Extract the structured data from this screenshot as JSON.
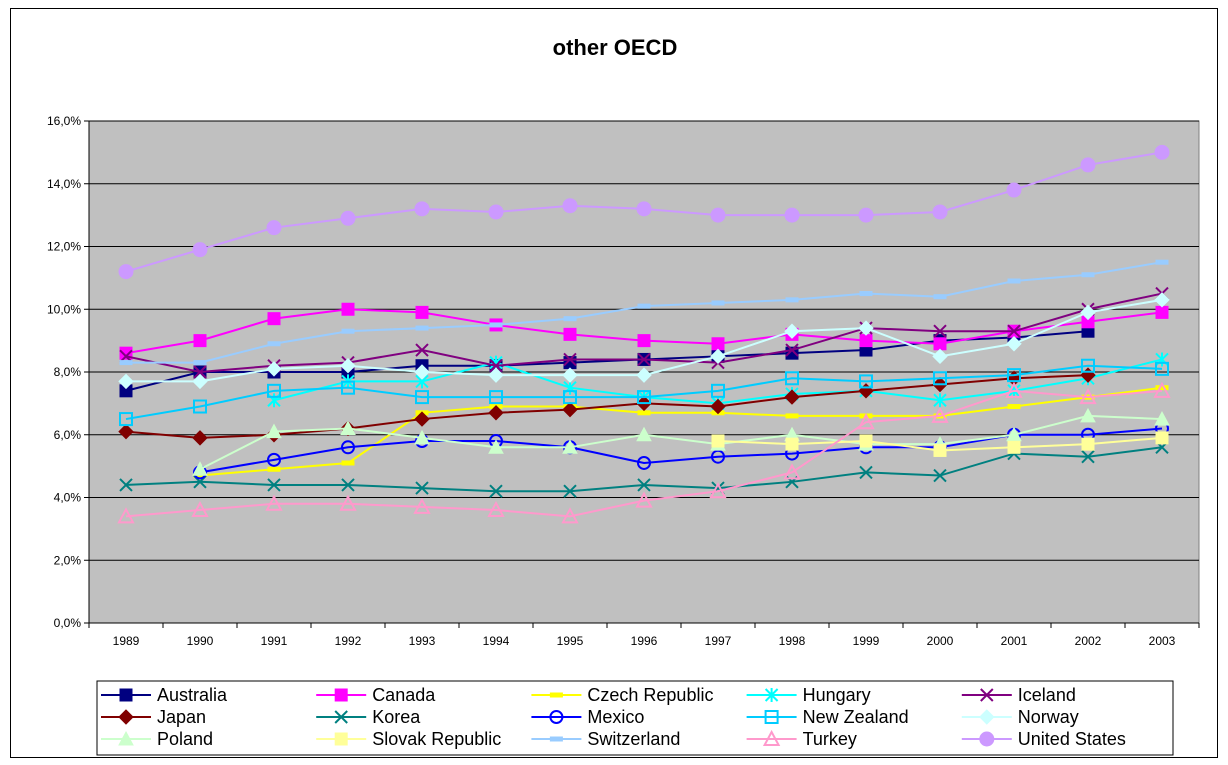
{
  "chart_data": {
    "type": "line",
    "title": "other OECD",
    "xlabel": "",
    "ylabel": "",
    "ylim": [
      0,
      16
    ],
    "y_tick_step": 2,
    "y_tick_labels": [
      "0,0%",
      "2,0%",
      "4,0%",
      "6,0%",
      "8,0%",
      "10,0%",
      "12,0%",
      "14,0%",
      "16,0%"
    ],
    "categories": [
      "1989",
      "1990",
      "1991",
      "1992",
      "1993",
      "1994",
      "1995",
      "1996",
      "1997",
      "1998",
      "1999",
      "2000",
      "2001",
      "2002",
      "2003"
    ],
    "plot_background": "#c0c0c0",
    "grid": true,
    "legend_position": "bottom",
    "series": [
      {
        "name": "Australia",
        "color": "#000080",
        "marker": "square",
        "values": [
          7.4,
          8.0,
          8.0,
          8.0,
          8.2,
          8.2,
          8.3,
          8.4,
          8.5,
          8.6,
          8.7,
          9.0,
          9.1,
          9.3,
          null
        ]
      },
      {
        "name": "Canada",
        "color": "#ff00ff",
        "marker": "square",
        "values": [
          8.6,
          9.0,
          9.7,
          10.0,
          9.9,
          9.5,
          9.2,
          9.0,
          8.9,
          9.2,
          9.0,
          8.9,
          9.3,
          9.6,
          9.9
        ]
      },
      {
        "name": "Czech Republic",
        "color": "#ffff00",
        "marker": "dash",
        "values": [
          null,
          4.7,
          4.9,
          5.1,
          6.7,
          6.9,
          6.9,
          6.7,
          6.7,
          6.6,
          6.6,
          6.6,
          6.9,
          7.2,
          7.5
        ]
      },
      {
        "name": "Hungary",
        "color": "#00ffff",
        "marker": "asterisk",
        "values": [
          null,
          null,
          7.1,
          7.7,
          7.7,
          8.3,
          7.5,
          7.2,
          7.0,
          7.3,
          7.4,
          7.1,
          7.4,
          7.8,
          8.4
        ]
      },
      {
        "name": "Iceland",
        "color": "#800080",
        "marker": "x",
        "values": [
          8.5,
          8.0,
          8.2,
          8.3,
          8.7,
          8.2,
          8.4,
          8.4,
          8.3,
          8.7,
          9.4,
          9.3,
          9.3,
          10.0,
          10.5
        ]
      },
      {
        "name": "Japan",
        "color": "#800000",
        "marker": "diamond",
        "values": [
          6.1,
          5.9,
          6.0,
          6.2,
          6.5,
          6.7,
          6.8,
          7.0,
          6.9,
          7.2,
          7.4,
          7.6,
          7.8,
          7.9,
          null
        ]
      },
      {
        "name": "Korea",
        "color": "#008080",
        "marker": "x",
        "values": [
          4.4,
          4.5,
          4.4,
          4.4,
          4.3,
          4.2,
          4.2,
          4.4,
          4.3,
          4.5,
          4.8,
          4.7,
          5.4,
          5.3,
          5.6
        ]
      },
      {
        "name": "Mexico",
        "color": "#0000ff",
        "marker": "circle",
        "values": [
          null,
          4.8,
          5.2,
          5.6,
          5.8,
          5.8,
          5.6,
          5.1,
          5.3,
          5.4,
          5.6,
          5.6,
          6.0,
          6.0,
          6.2
        ]
      },
      {
        "name": "New Zealand",
        "color": "#00ccff",
        "marker": "square-open",
        "values": [
          6.5,
          6.9,
          7.4,
          7.5,
          7.2,
          7.2,
          7.2,
          7.2,
          7.4,
          7.8,
          7.7,
          7.8,
          7.9,
          8.2,
          8.1
        ]
      },
      {
        "name": "Norway",
        "color": "#ccffff",
        "marker": "diamond",
        "values": [
          7.7,
          7.7,
          8.1,
          8.2,
          8.0,
          7.9,
          7.9,
          7.9,
          8.5,
          9.3,
          9.4,
          8.5,
          8.9,
          9.9,
          10.3
        ]
      },
      {
        "name": "Poland",
        "color": "#ccffcc",
        "marker": "triangle",
        "values": [
          null,
          4.9,
          6.1,
          6.2,
          5.9,
          5.6,
          5.6,
          6.0,
          5.7,
          6.0,
          5.7,
          5.7,
          6.0,
          6.6,
          6.5
        ]
      },
      {
        "name": "Slovak Republic",
        "color": "#ffff99",
        "marker": "square",
        "values": [
          null,
          null,
          null,
          null,
          null,
          null,
          null,
          null,
          5.8,
          5.7,
          5.8,
          5.5,
          5.6,
          5.7,
          5.9
        ]
      },
      {
        "name": "Switzerland",
        "color": "#99ccff",
        "marker": "dash",
        "values": [
          8.3,
          8.3,
          8.9,
          9.3,
          9.4,
          9.5,
          9.7,
          10.1,
          10.2,
          10.3,
          10.5,
          10.4,
          10.9,
          11.1,
          11.5
        ]
      },
      {
        "name": "Turkey",
        "color": "#ff99cc",
        "marker": "triangle-open",
        "values": [
          3.4,
          3.6,
          3.8,
          3.8,
          3.7,
          3.6,
          3.4,
          3.9,
          4.2,
          4.8,
          6.4,
          6.6,
          7.4,
          7.2,
          7.4
        ]
      },
      {
        "name": "United States",
        "color": "#cc99ff",
        "marker": "circle-filled",
        "values": [
          11.2,
          11.9,
          12.6,
          12.9,
          13.2,
          13.1,
          13.3,
          13.2,
          13.0,
          13.0,
          13.0,
          13.1,
          13.8,
          14.6,
          15.0
        ]
      }
    ]
  }
}
